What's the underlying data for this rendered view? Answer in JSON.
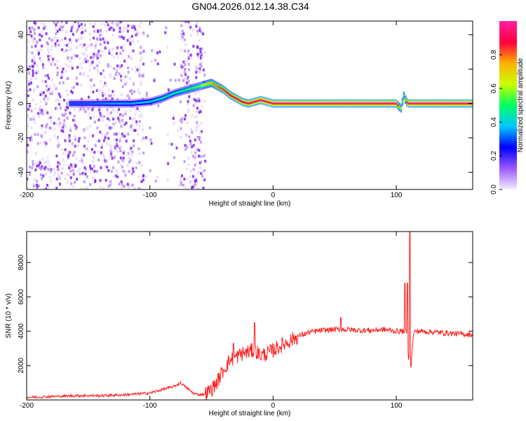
{
  "title": "GN04.2026.012.14.38.C34",
  "chart_data": [
    {
      "type": "heatmap",
      "xlabel": "Height of straight line (km)",
      "ylabel": "Frequency (Hz)",
      "xlim": [
        -200,
        162
      ],
      "ylim": [
        -50,
        48
      ],
      "x_ticks": [
        -200,
        -100,
        0,
        100
      ],
      "y_ticks": [
        -40,
        -20,
        0,
        20,
        40
      ],
      "colorbar": {
        "label": "Normalized spectral amplitude",
        "range": [
          0,
          1
        ],
        "ticks": [
          "0.0",
          "0.2",
          "0.4",
          "0.6",
          "0.8"
        ],
        "colormap": [
          "#f4ecff",
          "#9b59ff",
          "#0000ff",
          "#00c8ff",
          "#00ff60",
          "#c8ff00",
          "#ffb000",
          "#ff0040",
          "#ff20a0"
        ]
      },
      "ridge": {
        "x": [
          -165,
          -150,
          -130,
          -115,
          -100,
          -90,
          -80,
          -70,
          -60,
          -55,
          -50,
          -45,
          -40,
          -35,
          -30,
          -25,
          -20,
          -15,
          -10,
          -5,
          0,
          50,
          100,
          104,
          106,
          108,
          110,
          162
        ],
        "freq": [
          0,
          0,
          0,
          0,
          1,
          3,
          6,
          8,
          10,
          11,
          12,
          10,
          8,
          5,
          3,
          1,
          0,
          1,
          2,
          1,
          0,
          0,
          0,
          -3,
          5,
          1,
          0,
          0
        ],
        "amplitude": [
          0.3,
          0.3,
          0.35,
          0.35,
          0.4,
          0.45,
          0.45,
          0.5,
          0.55,
          0.65,
          0.75,
          0.8,
          0.85,
          0.88,
          0.9,
          0.92,
          0.93,
          0.94,
          0.95,
          0.96,
          0.97,
          0.98,
          0.98,
          0.6,
          0.5,
          0.8,
          0.98,
          0.98
        ]
      },
      "noise_region": [
        -200,
        -55
      ]
    },
    {
      "type": "line",
      "xlabel": "Height of straight line (km)",
      "ylabel": "SNR (10 * v/v)",
      "xlim": [
        -200,
        162
      ],
      "ylim": [
        0,
        9800
      ],
      "x_ticks": [
        -200,
        -100,
        0,
        100
      ],
      "y_ticks": [
        2000,
        4000,
        6000,
        8000
      ],
      "color": "#ff2020",
      "series": [
        {
          "x": [
            -200,
            -180,
            -160,
            -140,
            -120,
            -100,
            -90,
            -80,
            -75,
            -70,
            -65,
            -60,
            -55,
            -50,
            -45,
            -40,
            -35,
            -30,
            -25,
            -20,
            -15,
            -10,
            -5,
            0,
            10,
            20,
            30,
            40,
            50,
            60,
            70,
            80,
            90,
            100,
            105,
            108,
            110,
            112,
            114,
            116,
            120,
            130,
            140,
            150,
            162
          ],
          "y": [
            150,
            200,
            250,
            250,
            300,
            400,
            600,
            800,
            1000,
            700,
            400,
            300,
            350,
            600,
            1100,
            1800,
            2300,
            2500,
            2700,
            2800,
            2900,
            2600,
            2700,
            2900,
            3300,
            3700,
            3950,
            4050,
            4100,
            4100,
            4050,
            4050,
            4100,
            4000,
            4000,
            4050,
            2500,
            2000,
            3900,
            4000,
            4000,
            3950,
            3900,
            3850,
            3800
          ]
        }
      ],
      "spikes": [
        {
          "x": -32,
          "y": 3300
        },
        {
          "x": -15,
          "y": 4500
        },
        {
          "x": 55,
          "y": 4800
        },
        {
          "x": 107,
          "y": 6800
        },
        {
          "x": 109,
          "y": 6800
        },
        {
          "x": 111,
          "y": 9800
        }
      ]
    }
  ]
}
